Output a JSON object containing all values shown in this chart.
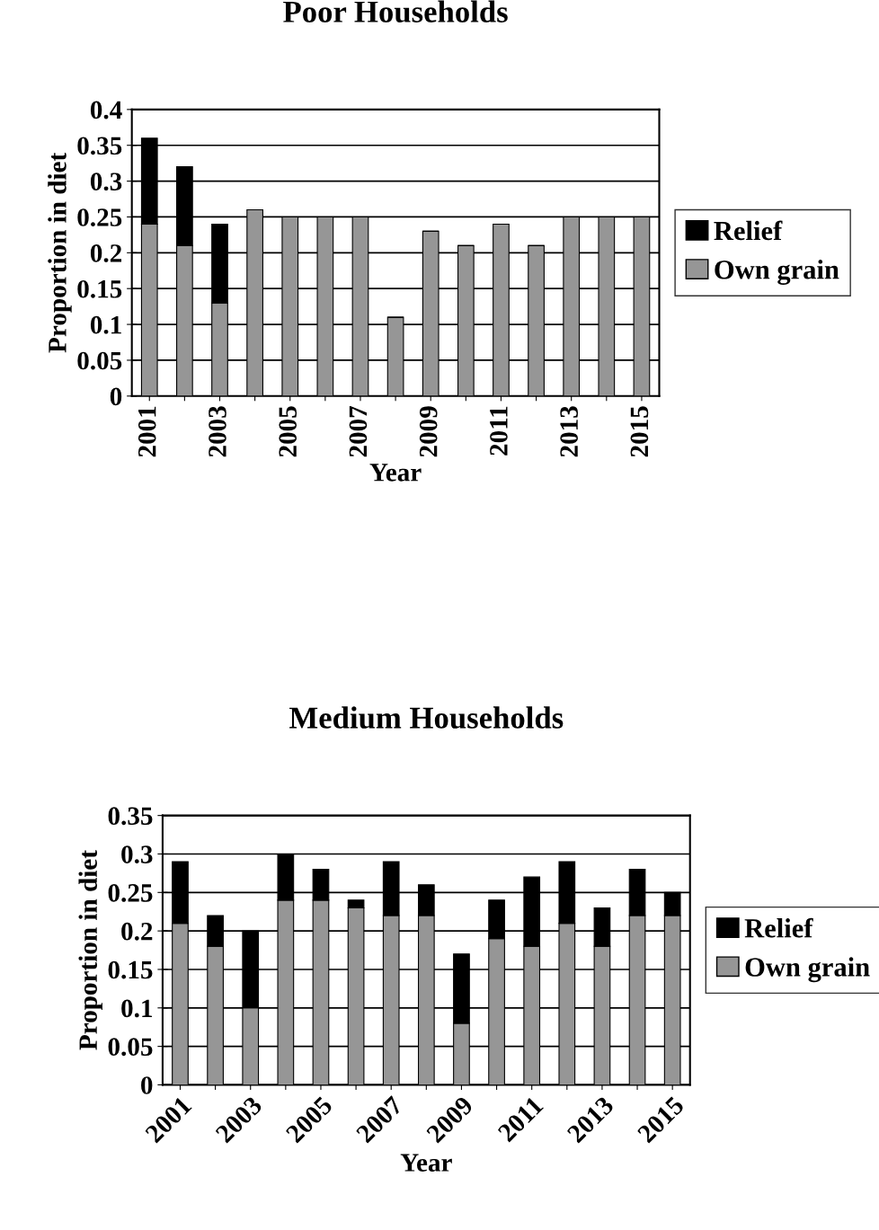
{
  "chart_data": [
    {
      "type": "bar",
      "title": "Poor Households",
      "xlabel": "Year",
      "ylabel": "Proportion in diet",
      "stacked": true,
      "categories": [
        "2001",
        null,
        "2003",
        null,
        "2005",
        null,
        "2007",
        null,
        "2009",
        null,
        "2011",
        null,
        "2013",
        null,
        "2015"
      ],
      "series": [
        {
          "name": "Own grain",
          "color": "#969696",
          "values": [
            0.24,
            0.21,
            0.13,
            0.26,
            0.25,
            0.25,
            0.25,
            0.11,
            0.23,
            0.21,
            0.24,
            0.21,
            0.25,
            0.25,
            0.25
          ]
        },
        {
          "name": "Relief",
          "color": "#000000",
          "values": [
            0.12,
            0.11,
            0.11,
            0,
            0,
            0,
            0,
            0,
            0,
            0,
            0,
            0,
            0,
            0,
            0
          ]
        }
      ],
      "ylim": [
        0,
        0.4
      ],
      "yticks": [
        0,
        0.05,
        0.1,
        0.15,
        0.2,
        0.25,
        0.3,
        0.35,
        0.4
      ],
      "grid": "y",
      "legend": "right"
    },
    {
      "type": "bar",
      "title": "Medium Households",
      "xlabel": "Year",
      "ylabel": "Proportion in diet",
      "stacked": true,
      "categories": [
        "2001",
        null,
        "2003",
        null,
        "2005",
        null,
        "2007",
        null,
        "2009",
        null,
        "2011",
        null,
        "2013",
        null,
        "2015"
      ],
      "series": [
        {
          "name": "Own grain",
          "color": "#969696",
          "values": [
            0.21,
            0.18,
            0.1,
            0.24,
            0.24,
            0.23,
            0.22,
            0.22,
            0.08,
            0.19,
            0.18,
            0.21,
            0.18,
            0.22,
            0.22
          ]
        },
        {
          "name": "Relief",
          "color": "#000000",
          "values": [
            0.08,
            0.04,
            0.1,
            0.06,
            0.04,
            0.01,
            0.07,
            0.04,
            0.09,
            0.05,
            0.09,
            0.08,
            0.05,
            0.06,
            0.03
          ]
        }
      ],
      "ylim": [
        0,
        0.35
      ],
      "yticks": [
        0,
        0.05,
        0.1,
        0.15,
        0.2,
        0.25,
        0.3,
        0.35
      ],
      "grid": "y",
      "legend": "right"
    }
  ]
}
